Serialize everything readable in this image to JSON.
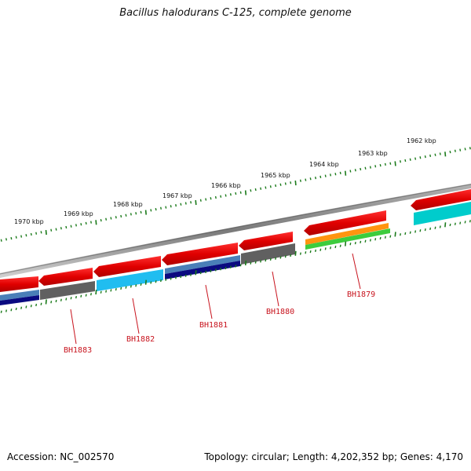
{
  "title": "Bacillus halodurans C-125, complete genome",
  "footer": {
    "accession": "Accession: NC_002570",
    "summary": "Topology: circular; Length: 4,202,352 bp; Genes: 4,170"
  },
  "scale": {
    "unit": "kbp",
    "labels": [
      "1962 kbp",
      "1963 kbp",
      "1964 kbp",
      "1965 kbp",
      "1966 kbp",
      "1967 kbp",
      "1968 kbp",
      "1969 kbp",
      "1970 kbp"
    ]
  },
  "genes": [
    {
      "name": "BH1879",
      "color_outer": "#ff9410",
      "color_inner": "#3dcc3d"
    },
    {
      "name": "BH1880",
      "color_outer": "#606060",
      "color_inner": "#606060"
    },
    {
      "name": "BH1881",
      "color_outer": "#4a7fb8",
      "color_inner": "#0a0a80"
    },
    {
      "name": "BH1882",
      "color_outer": "#20bdf0",
      "color_inner": "#20bdf0"
    },
    {
      "name": "BH1883",
      "color_outer": "#606060",
      "color_inner": "#0a0a80"
    }
  ],
  "colors": {
    "cds_arrow": "#ee0000",
    "backbone": "#888888",
    "ticks": "#1a7a1a",
    "label": "#c8141e",
    "cyan": "#00cccc"
  }
}
